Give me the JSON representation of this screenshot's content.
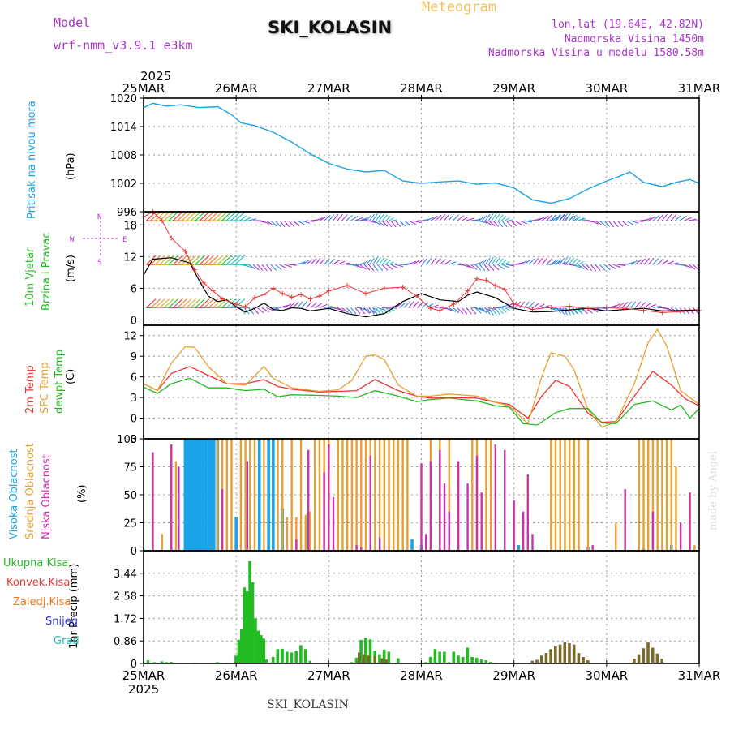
{
  "header": {
    "model_label": "Model",
    "model_name": "wrf-nmm_v3.9.1 e3km",
    "meteogram": "Meteogram",
    "station": "SKI_KOLASIN",
    "lonlat": "lon,lat (19.64E, 42.82N)",
    "elevation": "Nadmorska Visina 1450m",
    "model_elevation": "Nadmorska Visina u modelu 1580.58m",
    "footer_station": "SKI_KOLASIN",
    "credit": "made by Angel"
  },
  "colors": {
    "pressure": "#1aa3e6",
    "red": "#ee3333",
    "orange": "#e8a030",
    "green": "#22bb22",
    "purple": "#cc33aa",
    "blue": "#3388dd",
    "violet": "#aa33cc",
    "snow": "#3333dd",
    "grad": "#22bbbb"
  },
  "time_axis": {
    "year": "2025",
    "labels": [
      "25MAR",
      "26MAR",
      "27MAR",
      "28MAR",
      "29MAR",
      "30MAR",
      "31MAR"
    ]
  },
  "chart_data": [
    {
      "type": "line",
      "title": "Pritisak na nivou mora",
      "ylabel": "(hPa)",
      "ylim": [
        996,
        1020
      ],
      "yticks": [
        "996",
        "1002",
        "1008",
        "1014",
        "1020"
      ],
      "x_days": [
        0,
        0.1,
        0.25,
        0.4,
        0.6,
        0.8,
        0.95,
        1.05,
        1.2,
        1.4,
        1.6,
        1.8,
        2.0,
        2.2,
        2.4,
        2.6,
        2.8,
        3.0,
        3.2,
        3.4,
        3.6,
        3.8,
        4.0,
        4.2,
        4.4,
        4.6,
        4.8,
        5.0,
        5.1,
        5.25,
        5.4,
        5.6,
        5.75,
        5.9,
        6.0
      ],
      "values": [
        1018,
        1018.9,
        1018.3,
        1018.6,
        1018.0,
        1018.2,
        1016.5,
        1014.8,
        1014.2,
        1012.8,
        1010.7,
        1008.2,
        1006.2,
        1005.0,
        1004.4,
        1004.7,
        1002.5,
        1002.0,
        1002.3,
        1002.5,
        1001.8,
        1002.1,
        1001.0,
        998.5,
        997.8,
        998.8,
        1000.8,
        1002.5,
        1003.2,
        1004.4,
        1002.2,
        1001.3,
        1002.2,
        1002.8,
        1002.0
      ]
    },
    {
      "type": "line",
      "title": "10m Vjetar Brzina i Pravac",
      "ylabel": "(m/s)",
      "ylim": [
        -1,
        20.5
      ],
      "yticks": [
        "0",
        "6",
        "12",
        "18"
      ],
      "series": [
        {
          "name": "wind speed",
          "color": "black",
          "x_days": [
            0,
            0.1,
            0.3,
            0.5,
            0.6,
            0.7,
            0.8,
            0.9,
            1.0,
            1.1,
            1.2,
            1.3,
            1.4,
            1.5,
            1.6,
            1.7,
            1.8,
            2.0,
            2.2,
            2.4,
            2.6,
            2.8,
            3.0,
            3.2,
            3.4,
            3.5,
            3.6,
            3.8,
            4.0,
            4.2,
            4.4,
            4.6,
            4.8,
            5.0,
            5.2,
            5.4,
            5.6,
            5.8,
            6.0
          ],
          "values": [
            8.5,
            11.5,
            11.8,
            10.8,
            7.5,
            4.5,
            3.5,
            3.8,
            2.5,
            1.5,
            2.2,
            3.2,
            2.0,
            1.8,
            2.3,
            2.2,
            1.7,
            2.2,
            1.2,
            0.6,
            1.2,
            3.5,
            5.0,
            3.8,
            3.5,
            4.7,
            5.3,
            4.2,
            2.2,
            1.5,
            1.6,
            1.9,
            2.2,
            1.7,
            2.0,
            2.2,
            1.7,
            1.8,
            1.9
          ]
        },
        {
          "name": "gust",
          "color": "#ee3333",
          "x_days": [
            0,
            0.1,
            0.2,
            0.3,
            0.45,
            0.55,
            0.65,
            0.75,
            0.85,
            1.0,
            1.1,
            1.2,
            1.3,
            1.4,
            1.5,
            1.6,
            1.7,
            1.8,
            1.9,
            2.0,
            2.2,
            2.4,
            2.6,
            2.8,
            2.95,
            3.1,
            3.2,
            3.35,
            3.5,
            3.6,
            3.7,
            3.8,
            3.9,
            4.0,
            4.2,
            4.4,
            4.6,
            4.8,
            5.0,
            5.2,
            5.4,
            5.6,
            5.8,
            6.0
          ],
          "values": [
            19.5,
            20.5,
            18.8,
            15.5,
            13.0,
            9.5,
            7.0,
            5.5,
            4.0,
            3.0,
            2.5,
            4.2,
            4.8,
            6.0,
            5.0,
            4.3,
            4.8,
            4.0,
            4.5,
            5.5,
            6.5,
            5.0,
            6.0,
            6.2,
            4.5,
            2.2,
            1.8,
            3.0,
            5.5,
            7.8,
            7.5,
            6.5,
            5.8,
            3.0,
            2.0,
            2.4,
            2.6,
            2.2,
            2.3,
            2.2,
            1.8,
            1.4,
            1.6,
            1.8
          ]
        }
      ],
      "barb_rows": [
        18.8,
        10.5,
        2.3
      ]
    },
    {
      "type": "line",
      "title": "2m Temp / SFC Temp / dewpt Temp",
      "ylabel": "(C)",
      "ylim": [
        -3,
        13.5
      ],
      "yticks": [
        "-3",
        "0",
        "3",
        "6",
        "9",
        "12"
      ],
      "series": [
        {
          "name": "2m Temp",
          "color": "#ee3333",
          "x_days": [
            0,
            0.15,
            0.3,
            0.5,
            0.7,
            0.9,
            1.1,
            1.3,
            1.45,
            1.6,
            1.9,
            2.1,
            2.3,
            2.5,
            2.75,
            2.95,
            3.1,
            3.3,
            3.6,
            3.8,
            3.95,
            4.15,
            4.3,
            4.45,
            4.6,
            4.8,
            4.95,
            5.1,
            5.3,
            5.5,
            5.7,
            5.85,
            6.0
          ],
          "values": [
            5.0,
            4.0,
            6.5,
            7.5,
            6.2,
            5.0,
            5.0,
            5.6,
            4.6,
            4.2,
            3.8,
            3.9,
            4.0,
            5.6,
            4.0,
            3.2,
            2.9,
            3.0,
            2.9,
            2.3,
            2.0,
            0.0,
            3.2,
            5.5,
            4.6,
            0.7,
            -0.6,
            -0.5,
            3.2,
            6.8,
            4.8,
            2.8,
            1.8
          ]
        },
        {
          "name": "SFC Temp",
          "color": "#e8a030",
          "x_days": [
            0,
            0.15,
            0.3,
            0.45,
            0.55,
            0.7,
            0.9,
            1.1,
            1.3,
            1.4,
            1.6,
            1.9,
            2.1,
            2.25,
            2.4,
            2.5,
            2.6,
            2.75,
            2.95,
            3.1,
            3.3,
            3.6,
            3.8,
            3.95,
            4.15,
            4.3,
            4.4,
            4.55,
            4.65,
            4.8,
            4.95,
            5.1,
            5.3,
            5.45,
            5.55,
            5.65,
            5.8,
            6.0
          ],
          "values": [
            5.0,
            4.0,
            8.0,
            10.4,
            10.3,
            7.5,
            5.0,
            4.8,
            7.5,
            5.8,
            4.4,
            3.9,
            4.1,
            5.5,
            9.0,
            9.2,
            8.5,
            4.8,
            3.2,
            3.2,
            3.5,
            3.2,
            2.3,
            1.8,
            -0.8,
            6.0,
            9.5,
            9.0,
            7.0,
            1.2,
            -1.3,
            -0.6,
            5.0,
            11.0,
            12.9,
            10.5,
            4.0,
            2.0
          ]
        },
        {
          "name": "dewpt Temp",
          "color": "#22bb22",
          "x_days": [
            0,
            0.15,
            0.3,
            0.5,
            0.7,
            0.9,
            1.1,
            1.3,
            1.45,
            1.6,
            1.9,
            2.1,
            2.3,
            2.5,
            2.75,
            2.95,
            3.1,
            3.3,
            3.6,
            3.8,
            3.95,
            4.1,
            4.25,
            4.45,
            4.6,
            4.8,
            4.95,
            5.1,
            5.3,
            5.5,
            5.7,
            5.8,
            5.9,
            6.0
          ],
          "values": [
            4.5,
            3.6,
            5.0,
            5.8,
            4.4,
            4.4,
            4.0,
            4.2,
            3.1,
            3.4,
            3.3,
            3.2,
            3.0,
            4.0,
            3.2,
            2.4,
            2.7,
            2.9,
            2.5,
            1.8,
            1.6,
            -0.8,
            -1.0,
            0.8,
            1.4,
            1.4,
            -0.7,
            -0.8,
            2.0,
            2.5,
            1.2,
            1.9,
            0.0,
            1.4
          ]
        }
      ]
    },
    {
      "type": "bar",
      "title": "Visoka Oblacnost / Srednja Oblacnost / Niska Oblacnost",
      "ylabel": "(%)",
      "ylim": [
        0,
        100
      ],
      "yticks": [
        "0",
        "25",
        "50",
        "75",
        "100"
      ],
      "series": [
        {
          "name": "Visoka Oblacnost",
          "color": "#1aa3e6",
          "x_days": [
            0.45,
            0.48,
            0.5,
            0.52,
            0.55,
            0.58,
            0.61,
            0.64,
            0.67,
            0.7,
            0.73,
            0.76,
            0.8,
            1.0,
            1.25,
            1.35,
            1.4,
            1.5,
            2.9,
            3.0,
            4.05,
            4.8,
            5.4,
            5.7
          ],
          "values": [
            100,
            100,
            100,
            100,
            100,
            100,
            100,
            100,
            100,
            100,
            100,
            100,
            100,
            30,
            100,
            100,
            100,
            38,
            10,
            5,
            5,
            3,
            2,
            5
          ]
        },
        {
          "name": "Srednja Oblacnost",
          "color": "#e8a030",
          "x_days": [
            0.2,
            0.35,
            0.8,
            0.85,
            0.9,
            0.95,
            1.05,
            1.1,
            1.15,
            1.2,
            1.3,
            1.45,
            1.5,
            1.55,
            1.6,
            1.65,
            1.7,
            1.75,
            1.8,
            1.85,
            1.9,
            1.95,
            2.0,
            2.1,
            2.15,
            2.2,
            2.25,
            2.3,
            2.35,
            2.4,
            2.45,
            2.5,
            2.55,
            2.6,
            2.65,
            2.7,
            2.75,
            2.8,
            2.85,
            3.1,
            3.2,
            3.3,
            3.55,
            3.6,
            3.7,
            3.75,
            4.1,
            4.4,
            4.45,
            4.5,
            4.55,
            4.6,
            4.65,
            4.7,
            4.8,
            5.1,
            5.35,
            5.4,
            5.45,
            5.5,
            5.55,
            5.6,
            5.65,
            5.7,
            5.75,
            5.95
          ],
          "values": [
            15,
            80,
            100,
            100,
            100,
            100,
            100,
            100,
            100,
            100,
            100,
            100,
            100,
            30,
            100,
            30,
            100,
            32,
            35,
            100,
            100,
            100,
            100,
            100,
            100,
            100,
            100,
            100,
            100,
            100,
            100,
            100,
            100,
            100,
            100,
            100,
            100,
            100,
            100,
            100,
            100,
            100,
            100,
            100,
            100,
            100,
            30,
            100,
            100,
            100,
            100,
            100,
            100,
            100,
            100,
            25,
            100,
            100,
            100,
            100,
            100,
            100,
            100,
            100,
            75,
            5
          ]
        },
        {
          "name": "Niska Oblacnost",
          "color": "#cc33aa",
          "x_days": [
            0.1,
            0.3,
            0.38,
            0.85,
            1.12,
            1.65,
            1.78,
            1.95,
            2.0,
            2.05,
            2.3,
            2.35,
            2.45,
            2.55,
            3.0,
            3.05,
            3.1,
            3.2,
            3.25,
            3.3,
            3.4,
            3.5,
            3.6,
            3.65,
            3.8,
            3.9,
            4.0,
            4.1,
            4.15,
            4.2,
            4.85,
            5.2,
            5.5,
            5.8,
            5.9
          ],
          "values": [
            88,
            95,
            75,
            55,
            80,
            10,
            90,
            70,
            95,
            48,
            5,
            3,
            85,
            12,
            78,
            15,
            80,
            90,
            60,
            35,
            80,
            60,
            85,
            52,
            95,
            90,
            45,
            35,
            68,
            15,
            5,
            55,
            35,
            25,
            52
          ]
        }
      ]
    },
    {
      "type": "bar",
      "title": "1hr Precip",
      "ylabel": "1hr Precip (mm)",
      "ylim": [
        0,
        4.3
      ],
      "yticks": [
        "0",
        "0.86",
        "1.72",
        "2.58",
        "3.44"
      ],
      "legend": [
        "Ukupna Kisa",
        "Konvek.Kisa",
        "Zaledj.Kisa",
        "Snijeg",
        "Grad"
      ],
      "series": [
        {
          "name": "Ukupna Kisa",
          "color": "#22bb22",
          "x_days": [
            0.05,
            0.12,
            0.2,
            0.25,
            0.3,
            0.55,
            0.7,
            0.8,
            0.85,
            0.9,
            1.0,
            1.03,
            1.06,
            1.09,
            1.12,
            1.15,
            1.18,
            1.21,
            1.24,
            1.27,
            1.3,
            1.33,
            1.4,
            1.45,
            1.5,
            1.55,
            1.6,
            1.65,
            1.7,
            1.75,
            1.8,
            2.25,
            2.3,
            2.35,
            2.4,
            2.45,
            2.5,
            2.55,
            2.6,
            2.65,
            2.75,
            3.05,
            3.1,
            3.15,
            3.2,
            3.25,
            3.3,
            3.35,
            3.4,
            3.45,
            3.5,
            3.55,
            3.6,
            3.65,
            3.7,
            3.75,
            3.8
          ],
          "values": [
            0.12,
            0.05,
            0.08,
            0.05,
            0.06,
            0.03,
            0.02,
            0.05,
            0.03,
            0.03,
            0.3,
            0.9,
            1.3,
            2.9,
            2.75,
            3.9,
            3.1,
            1.72,
            1.25,
            1.08,
            0.95,
            0.15,
            0.25,
            0.55,
            0.56,
            0.45,
            0.42,
            0.48,
            0.7,
            0.55,
            0.1,
            0.05,
            0.22,
            0.9,
            0.98,
            0.92,
            0.48,
            0.35,
            0.53,
            0.45,
            0.2,
            0.05,
            0.25,
            0.55,
            0.45,
            0.45,
            0.05,
            0.45,
            0.3,
            0.25,
            0.6,
            0.25,
            0.22,
            0.15,
            0.12,
            0.06,
            0.03
          ]
        },
        {
          "name": "Konvek.Kisa",
          "color": "#7a6a2a",
          "x_days": [
            2.33,
            2.38,
            2.43,
            2.5,
            2.58,
            2.62,
            4.2,
            4.25,
            4.3,
            4.35,
            4.4,
            4.45,
            4.5,
            4.55,
            4.6,
            4.65,
            4.7,
            4.75,
            4.8,
            5.3,
            5.35,
            5.4,
            5.45,
            5.5,
            5.55,
            5.6
          ],
          "values": [
            0.42,
            0.35,
            0.3,
            0.28,
            0.2,
            0.15,
            0.1,
            0.14,
            0.3,
            0.4,
            0.55,
            0.65,
            0.72,
            0.8,
            0.77,
            0.72,
            0.4,
            0.25,
            0.12,
            0.18,
            0.35,
            0.58,
            0.8,
            0.6,
            0.38,
            0.18
          ]
        }
      ]
    }
  ]
}
